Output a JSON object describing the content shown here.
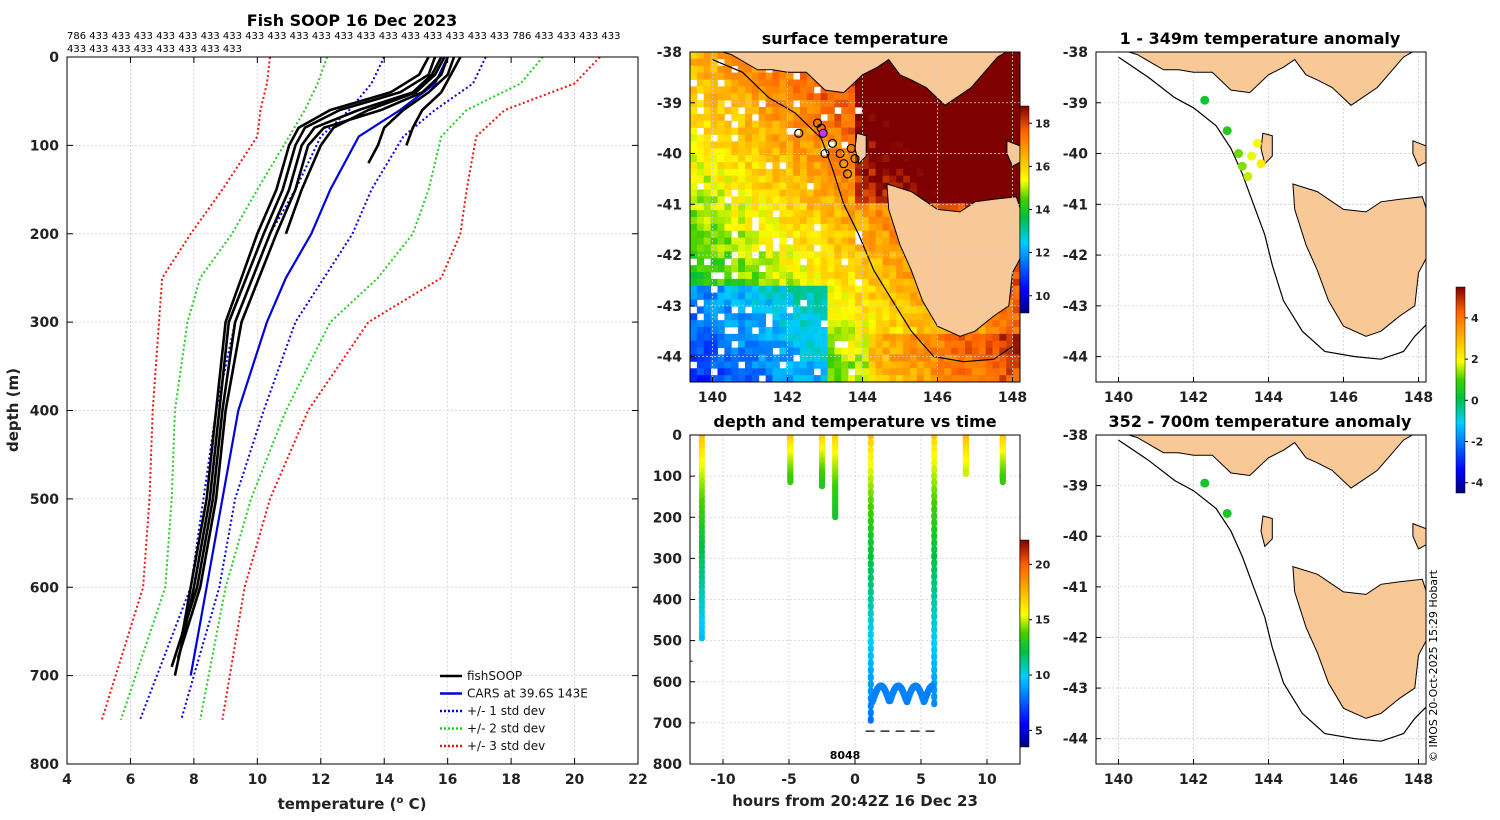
{
  "figure": {
    "credit": "© IMOS 20-Oct-2025 15:29 Hobart"
  },
  "chart_data": [
    {
      "id": "profile",
      "type": "line",
      "title": "Fish SOOP 16 Dec 2023",
      "count_labels": "786 433 433 433 433 433 433 433 433 433 433 433 433 433 433 433 433 433 433 433 786 433 433 433 433 433 433 433 433 433 433 433 433",
      "xlabel": "temperature (",
      "xlabel_sup": "o",
      "xlabel_end": " C)",
      "ylabel": "depth (m)",
      "xlim": [
        4,
        22
      ],
      "ylim": [
        800,
        0
      ],
      "xticks": [
        4,
        6,
        8,
        10,
        12,
        14,
        16,
        18,
        20,
        22
      ],
      "yticks": [
        0,
        100,
        200,
        300,
        400,
        500,
        600,
        700,
        800
      ],
      "legend_position": "bottom-right",
      "legend": [
        {
          "label": "fishSOOP",
          "color": "#000000",
          "style": "solid"
        },
        {
          "label": "CARS at 39.6S 143E",
          "color": "#0000dd",
          "style": "solid"
        },
        {
          "label": "+/- 1 std dev",
          "color": "#0000dd",
          "style": "dotted"
        },
        {
          "label": "+/- 2 std dev",
          "color": "#22cc22",
          "style": "dotted"
        },
        {
          "label": "+/- 3 std dev",
          "color": "#ee1111",
          "style": "dotted"
        }
      ],
      "cars_mean": {
        "depth": [
          0,
          30,
          60,
          90,
          150,
          200,
          250,
          300,
          400,
          500,
          600,
          700
        ],
        "temp": [
          16.0,
          15.6,
          14.5,
          13.2,
          12.3,
          11.7,
          10.9,
          10.3,
          9.4,
          8.9,
          8.4,
          7.9
        ]
      },
      "std_bands": [
        {
          "name": "+1",
          "color": "#0000dd",
          "depth": [
            0,
            30,
            60,
            90,
            150,
            200,
            300,
            400,
            500,
            600,
            750
          ],
          "temp": [
            17.2,
            16.8,
            15.6,
            14.6,
            13.6,
            13.0,
            11.2,
            10.2,
            9.3,
            8.8,
            7.6
          ]
        },
        {
          "name": "-1",
          "color": "#0000dd",
          "depth": [
            0,
            30,
            60,
            90,
            150,
            200,
            300,
            400,
            500,
            600,
            750
          ],
          "temp": [
            14.0,
            13.6,
            12.9,
            12.0,
            11.2,
            10.4,
            9.3,
            8.7,
            8.3,
            7.9,
            6.3
          ]
        },
        {
          "name": "+2",
          "color": "#22cc22",
          "depth": [
            0,
            30,
            60,
            90,
            150,
            200,
            250,
            300,
            400,
            500,
            600,
            750
          ],
          "temp": [
            19.0,
            18.3,
            16.6,
            15.8,
            15.4,
            14.9,
            13.8,
            12.3,
            10.9,
            9.8,
            9.0,
            8.2
          ]
        },
        {
          "name": "-2",
          "color": "#22cc22",
          "depth": [
            0,
            30,
            60,
            90,
            150,
            200,
            250,
            300,
            400,
            500,
            600,
            750
          ],
          "temp": [
            12.2,
            11.9,
            11.5,
            11.0,
            10.0,
            9.2,
            8.2,
            7.8,
            7.4,
            7.3,
            7.1,
            5.7
          ]
        },
        {
          "name": "+3",
          "color": "#ee1111",
          "depth": [
            0,
            30,
            60,
            90,
            150,
            200,
            250,
            300,
            400,
            500,
            600,
            750
          ],
          "temp": [
            20.8,
            20.0,
            17.8,
            16.9,
            16.6,
            16.4,
            15.8,
            13.5,
            11.6,
            10.4,
            9.6,
            8.9
          ]
        },
        {
          "name": "-3",
          "color": "#ee1111",
          "depth": [
            0,
            30,
            60,
            90,
            150,
            200,
            250,
            300,
            400,
            500,
            600,
            750
          ],
          "temp": [
            10.4,
            10.3,
            10.1,
            10.0,
            8.9,
            7.9,
            7.0,
            6.9,
            6.7,
            6.6,
            6.4,
            5.1
          ]
        }
      ],
      "fishsoop_profiles": [
        {
          "depth": [
            0,
            20,
            40,
            60,
            80,
            100,
            150,
            200,
            300,
            400,
            500,
            600,
            700
          ],
          "temp": [
            15.6,
            15.4,
            14.5,
            12.6,
            11.5,
            11.2,
            10.8,
            10.2,
            9.1,
            8.8,
            8.5,
            8.0,
            7.4
          ]
        },
        {
          "depth": [
            0,
            20,
            40,
            60,
            80,
            100,
            150,
            200,
            300,
            400,
            500,
            600,
            690
          ],
          "temp": [
            15.8,
            15.5,
            14.9,
            13.2,
            11.8,
            11.4,
            11.0,
            10.4,
            9.3,
            8.9,
            8.6,
            8.1,
            7.3
          ]
        },
        {
          "depth": [
            0,
            20,
            40,
            60,
            80,
            100,
            150,
            200,
            300,
            400,
            500,
            600,
            680
          ],
          "temp": [
            16.0,
            15.8,
            15.2,
            13.9,
            12.1,
            11.6,
            11.2,
            10.6,
            9.5,
            9.0,
            8.7,
            8.2,
            7.5
          ]
        },
        {
          "depth": [
            0,
            20,
            40,
            60,
            80,
            100,
            150,
            200,
            300,
            400,
            500,
            600,
            660
          ],
          "temp": [
            15.4,
            15.1,
            14.2,
            12.3,
            11.3,
            11.0,
            10.6,
            10.0,
            9.0,
            8.7,
            8.4,
            7.9,
            7.6
          ]
        },
        {
          "depth": [
            0,
            20,
            40,
            60,
            80,
            100,
            120
          ],
          "temp": [
            16.2,
            16.0,
            15.4,
            14.6,
            14.0,
            13.8,
            13.5
          ]
        },
        {
          "depth": [
            0,
            20,
            40,
            60,
            80,
            100
          ],
          "temp": [
            16.4,
            16.1,
            15.8,
            15.2,
            14.9,
            14.7
          ]
        },
        {
          "depth": [
            0,
            20,
            40,
            60,
            80,
            100,
            150,
            200
          ],
          "temp": [
            15.9,
            15.6,
            15.0,
            13.5,
            12.4,
            12.0,
            11.4,
            10.9
          ]
        }
      ]
    },
    {
      "id": "sst-map",
      "type": "heatmap",
      "title": "surface temperature",
      "xlim": [
        139.4,
        148.2
      ],
      "ylim": [
        -44.5,
        -38
      ],
      "xticks": [
        140,
        142,
        144,
        146,
        148
      ],
      "yticks": [
        -38,
        -39,
        -40,
        -41,
        -42,
        -43,
        -44
      ],
      "colorbar": {
        "range": [
          9.2,
          18.8
        ],
        "ticks": [
          10,
          12,
          14,
          16,
          18
        ]
      },
      "track_points": [
        {
          "lon": 142.3,
          "lat": -39.6
        },
        {
          "lon": 142.8,
          "lat": -39.4
        },
        {
          "lon": 142.9,
          "lat": -39.5
        },
        {
          "lon": 143.0,
          "lat": -40.0
        },
        {
          "lon": 143.2,
          "lat": -39.8
        },
        {
          "lon": 143.4,
          "lat": -40.0
        },
        {
          "lon": 143.5,
          "lat": -40.2
        },
        {
          "lon": 143.6,
          "lat": -40.4
        },
        {
          "lon": 143.7,
          "lat": -39.9
        },
        {
          "lon": 143.8,
          "lat": -40.1
        }
      ],
      "highlight_point": {
        "lon": 142.95,
        "lat": -39.6
      }
    },
    {
      "id": "depth-time",
      "type": "scatter",
      "title": "depth and temperature vs time",
      "xlabel": "hours from 20:42Z 16 Dec 23",
      "xlim": [
        -12.5,
        12.5
      ],
      "ylim": [
        800,
        0
      ],
      "xticks": [
        -10,
        -5,
        0,
        5,
        10
      ],
      "yticks": [
        0,
        100,
        200,
        300,
        400,
        500,
        600,
        700,
        800
      ],
      "annotation": "8048",
      "bottom_depth_marks": {
        "depth": [
          550,
          720
        ],
        "x": [
          -12.3,
          3.5
        ]
      },
      "colorbar": {
        "range": [
          3.5,
          22.2
        ],
        "ticks": [
          5,
          10,
          15,
          20
        ]
      },
      "drops": [
        {
          "t": -11.6,
          "max_depth": 490,
          "surf_temp": 17.5,
          "deep_temp": 9.5
        },
        {
          "t": -4.9,
          "max_depth": 110,
          "surf_temp": 17.6,
          "deep_temp": 13.5
        },
        {
          "t": -2.5,
          "max_depth": 120,
          "surf_temp": 17.4,
          "deep_temp": 13.0
        },
        {
          "t": -1.5,
          "max_depth": 195,
          "surf_temp": 17.2,
          "deep_temp": 12.5
        },
        {
          "t": 1.2,
          "max_depth": 690,
          "surf_temp": 17.3,
          "deep_temp": 8.0
        },
        {
          "t": 6.0,
          "max_depth": 650,
          "surf_temp": 17.0,
          "deep_temp": 8.5
        },
        {
          "t": 8.4,
          "max_depth": 90,
          "surf_temp": 17.8,
          "deep_temp": 15.0
        },
        {
          "t": 11.2,
          "max_depth": 110,
          "surf_temp": 17.6,
          "deep_temp": 13.5
        }
      ]
    },
    {
      "id": "anomaly-1-349",
      "type": "scatter",
      "title": "1 - 349m temperature anomaly",
      "xlim": [
        139.4,
        148.2
      ],
      "ylim": [
        -44.5,
        -38
      ],
      "xticks": [
        140,
        142,
        144,
        146,
        148
      ],
      "yticks": [
        -38,
        -39,
        -40,
        -41,
        -42,
        -43,
        -44
      ],
      "points": [
        {
          "lon": 142.3,
          "lat": -38.95,
          "anom": 0.3
        },
        {
          "lon": 142.9,
          "lat": -39.55,
          "anom": 0.6
        },
        {
          "lon": 143.2,
          "lat": -40.0,
          "anom": 1.2
        },
        {
          "lon": 143.3,
          "lat": -40.25,
          "anom": 1.3
        },
        {
          "lon": 143.45,
          "lat": -40.45,
          "anom": 1.6
        },
        {
          "lon": 143.55,
          "lat": -40.05,
          "anom": 1.8
        },
        {
          "lon": 143.7,
          "lat": -39.8,
          "anom": 2.0
        },
        {
          "lon": 143.8,
          "lat": -40.2,
          "anom": 2.2
        }
      ],
      "colorbar": {
        "range": [
          -4.5,
          5.5
        ],
        "ticks": [
          -4,
          -2,
          0,
          2,
          4
        ]
      }
    },
    {
      "id": "anomaly-352-700",
      "type": "scatter",
      "title": "352 - 700m temperature anomaly",
      "xlim": [
        139.4,
        148.2
      ],
      "ylim": [
        -44.5,
        -38
      ],
      "xticks": [
        140,
        142,
        144,
        146,
        148
      ],
      "yticks": [
        -38,
        -39,
        -40,
        -41,
        -42,
        -43,
        -44
      ],
      "points": [
        {
          "lon": 142.3,
          "lat": -38.95,
          "anom": 0.4
        },
        {
          "lon": 142.9,
          "lat": -39.55,
          "anom": 0.5
        }
      ]
    }
  ]
}
